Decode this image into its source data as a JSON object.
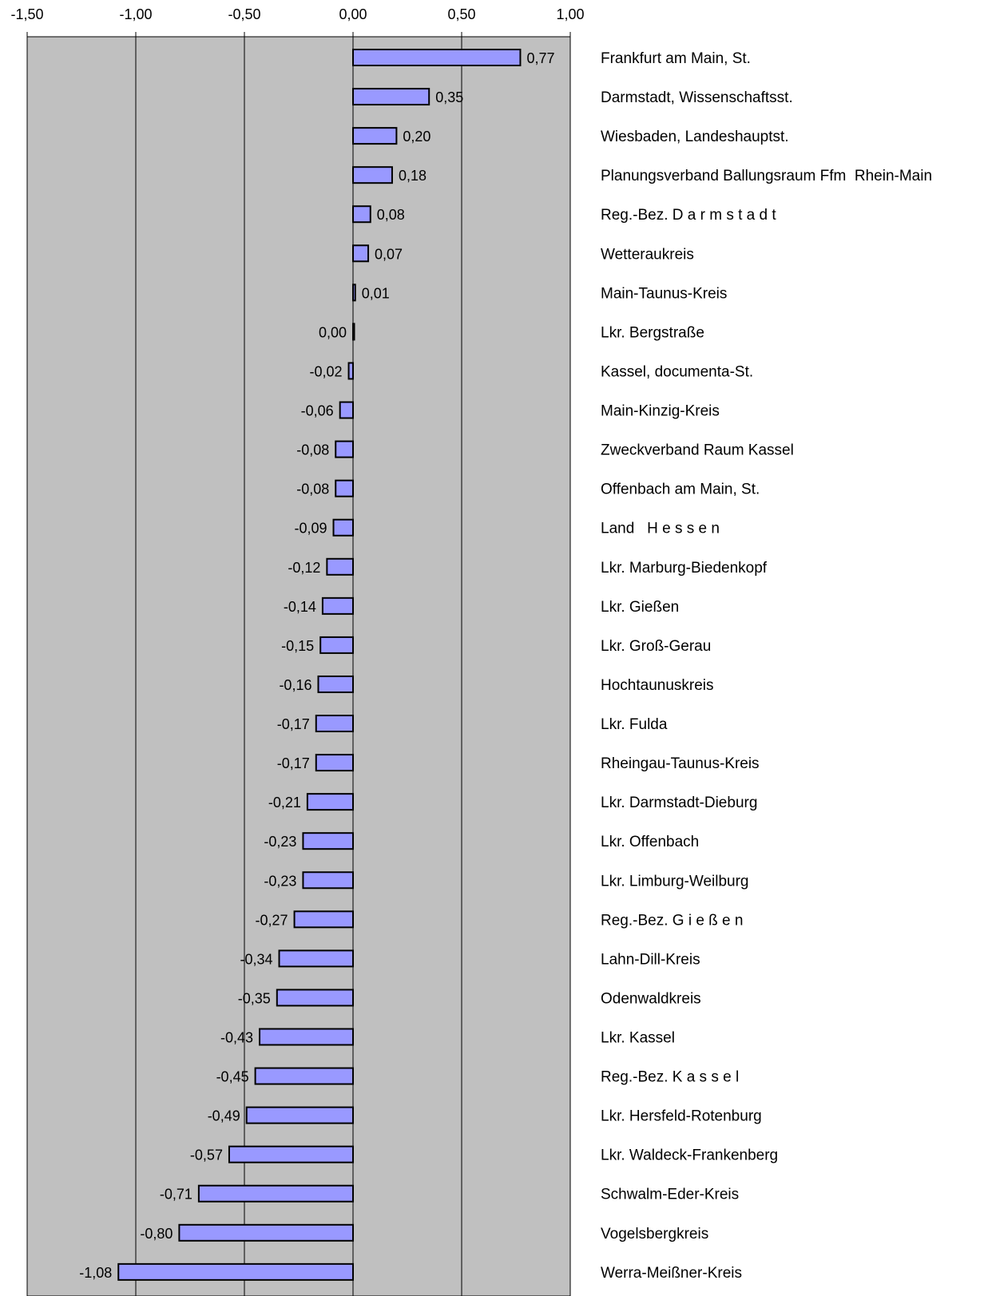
{
  "chart_data": {
    "type": "bar",
    "orientation": "horizontal",
    "title": "",
    "xlabel": "",
    "ylabel": "",
    "xlim": [
      -1.5,
      1.0
    ],
    "x_ticks": [
      -1.5,
      -1.0,
      -0.5,
      0.0,
      0.5,
      1.0
    ],
    "x_tick_labels": [
      "-1,50",
      "-1,00",
      "-0,50",
      "0,00",
      "0,50",
      "1,00"
    ],
    "x_axis_position": "top",
    "grid": "vertical",
    "plot_background": "#c0c0c0",
    "bar_color": "#9999ff",
    "bar_edge_color": "#000000",
    "categories": [
      "Frankfurt am Main, St.",
      "Darmstadt, Wissenschaftsst.",
      "Wiesbaden, Landeshauptst.",
      "Planungsverband Ballungsraum Ffm  Rhein-Main",
      "Reg.-Bez. D a r m s t a d t",
      "Wetteraukreis",
      "Main-Taunus-Kreis",
      "Lkr. Bergstraße",
      "Kassel, documenta-St.",
      "Main-Kinzig-Kreis",
      "Zweckverband Raum Kassel",
      "Offenbach am Main, St.",
      "Land   H e s s e n",
      "Lkr. Marburg-Biedenkopf",
      "Lkr. Gießen",
      "Lkr. Groß-Gerau",
      "Hochtaunuskreis",
      "Lkr. Fulda",
      "Rheingau-Taunus-Kreis",
      "Lkr. Darmstadt-Dieburg",
      "Lkr. Offenbach",
      "Lkr. Limburg-Weilburg",
      "Reg.-Bez. G i e ß e n",
      "Lahn-Dill-Kreis",
      "Odenwaldkreis",
      "Lkr. Kassel",
      "Reg.-Bez. K a s s e l",
      "Lkr. Hersfeld-Rotenburg",
      "Lkr. Waldeck-Frankenberg",
      "Schwalm-Eder-Kreis",
      "Vogelsbergkreis",
      "Werra-Meißner-Kreis"
    ],
    "values": [
      0.77,
      0.35,
      0.2,
      0.18,
      0.08,
      0.07,
      0.01,
      0.0,
      -0.02,
      -0.06,
      -0.08,
      -0.08,
      -0.09,
      -0.12,
      -0.14,
      -0.15,
      -0.16,
      -0.17,
      -0.17,
      -0.21,
      -0.23,
      -0.23,
      -0.27,
      -0.34,
      -0.35,
      -0.43,
      -0.45,
      -0.49,
      -0.57,
      -0.71,
      -0.8,
      -1.08
    ],
    "value_labels": [
      "0,77",
      "0,35",
      "0,20",
      "0,18",
      "0,08",
      "0,07",
      "0,01",
      "0,00",
      "-0,02",
      "-0,06",
      "-0,08",
      "-0,08",
      "-0,09",
      "-0,12",
      "-0,14",
      "-0,15",
      "-0,16",
      "-0,17",
      "-0,17",
      "-0,21",
      "-0,23",
      "-0,23",
      "-0,27",
      "-0,34",
      "-0,35",
      "-0,43",
      "-0,45",
      "-0,49",
      "-0,57",
      "-0,71",
      "-0,80",
      "-1,08"
    ]
  }
}
